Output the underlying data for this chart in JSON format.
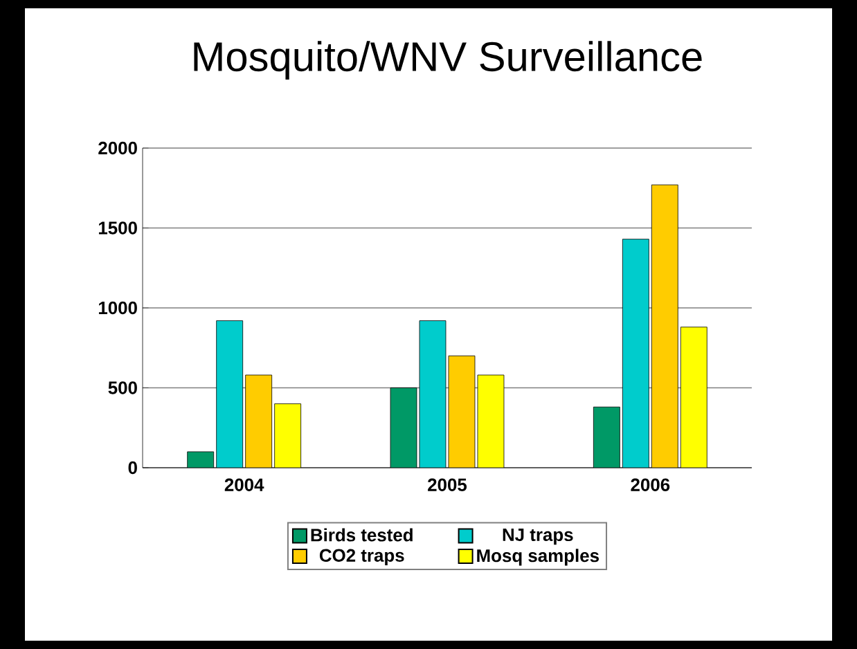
{
  "chart_data": {
    "type": "bar",
    "title": "Mosquito/WNV Surveillance",
    "categories": [
      "2004",
      "2005",
      "2006"
    ],
    "series": [
      {
        "name": "Birds tested",
        "color": "#009966",
        "values": [
          100,
          500,
          380
        ]
      },
      {
        "name": "NJ traps",
        "color": "#00cccc",
        "values": [
          920,
          920,
          1430
        ]
      },
      {
        "name": "CO2 traps",
        "color": "#ffcc00",
        "values": [
          580,
          700,
          1770
        ]
      },
      {
        "name": "Mosq samples",
        "color": "#ffff00",
        "values": [
          400,
          580,
          880
        ]
      }
    ],
    "ylim": [
      0,
      2000
    ],
    "yticks": [
      0,
      500,
      1000,
      1500,
      2000
    ],
    "grid": "y",
    "legend": "bottom"
  }
}
